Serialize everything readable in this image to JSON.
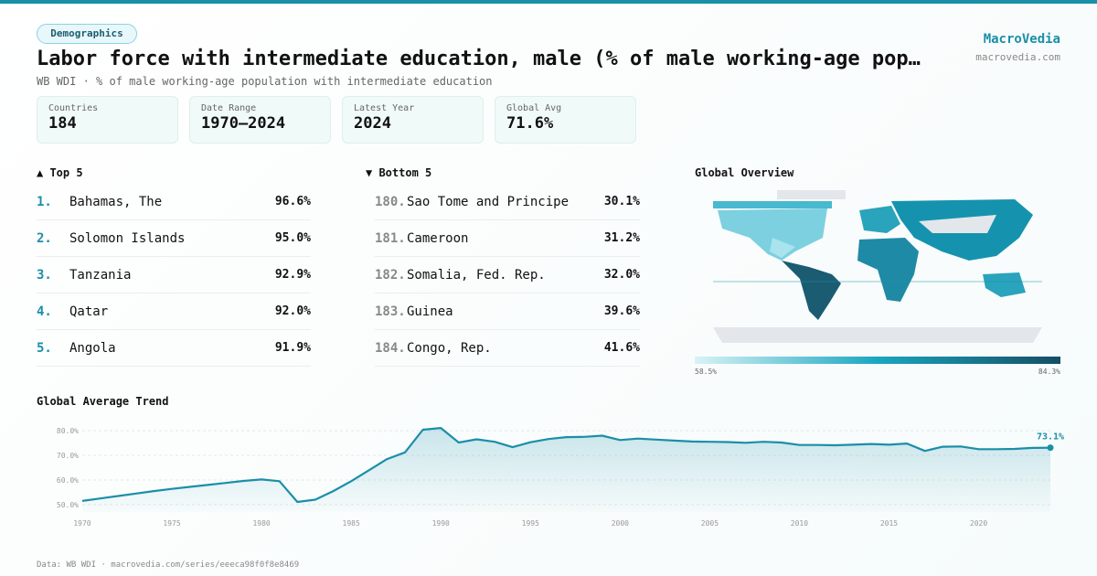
{
  "header": {
    "tag": "Demographics",
    "title": "Labor force with intermediate education, male (% of male working-age pop…",
    "subtitle": "WB WDI · % of male working-age population with intermediate education",
    "brand": "MacroVedia",
    "site": "macrovedia.com"
  },
  "stats": [
    {
      "label": "Countries",
      "value": "184"
    },
    {
      "label": "Date Range",
      "value": "1970–2024"
    },
    {
      "label": "Latest Year",
      "value": "2024"
    },
    {
      "label": "Global Avg",
      "value": "71.6%"
    }
  ],
  "top": {
    "title": "▲ Top 5",
    "rows": [
      {
        "rank": "1.",
        "name": "Bahamas, The",
        "value": "96.6%"
      },
      {
        "rank": "2.",
        "name": "Solomon Islands",
        "value": "95.0%"
      },
      {
        "rank": "3.",
        "name": "Tanzania",
        "value": "92.9%"
      },
      {
        "rank": "4.",
        "name": "Qatar",
        "value": "92.0%"
      },
      {
        "rank": "5.",
        "name": "Angola",
        "value": "91.9%"
      }
    ]
  },
  "bottom": {
    "title": "▼ Bottom 5",
    "rows": [
      {
        "rank": "180.",
        "name": "Sao Tome and Principe",
        "value": "30.1%"
      },
      {
        "rank": "181.",
        "name": "Cameroon",
        "value": "31.2%"
      },
      {
        "rank": "182.",
        "name": "Somalia, Fed. Rep.",
        "value": "32.0%"
      },
      {
        "rank": "183.",
        "name": "Guinea",
        "value": "39.6%"
      },
      {
        "rank": "184.",
        "name": "Congo, Rep.",
        "value": "41.6%"
      }
    ]
  },
  "map": {
    "title": "Global Overview",
    "min_label": "58.5%",
    "max_label": "84.3%"
  },
  "chart_data": {
    "type": "line",
    "title": "Global Average Trend",
    "x": [
      1970,
      1971,
      1972,
      1973,
      1974,
      1975,
      1976,
      1977,
      1978,
      1979,
      1980,
      1981,
      1982,
      1983,
      1984,
      1985,
      1986,
      1987,
      1988,
      1989,
      1990,
      1991,
      1992,
      1993,
      1994,
      1995,
      1996,
      1997,
      1998,
      1999,
      2000,
      2001,
      2002,
      2003,
      2004,
      2005,
      2006,
      2007,
      2008,
      2009,
      2010,
      2011,
      2012,
      2013,
      2014,
      2015,
      2016,
      2017,
      2018,
      2019,
      2020,
      2021,
      2022,
      2023,
      2024
    ],
    "series": [
      {
        "name": "Global average",
        "color": "#1a8fa8",
        "values": [
          51.5,
          52.5,
          53.5,
          54.5,
          55.5,
          56.4,
          57.2,
          58,
          58.8,
          59.6,
          60.2,
          59.5,
          51.1,
          52,
          55.5,
          59.5,
          64,
          68.5,
          71.2,
          80.4,
          81.1,
          75.2,
          76.5,
          75.5,
          73.3,
          75.3,
          76.6,
          77.4,
          77.5,
          78,
          76.2,
          76.8,
          76.4,
          76,
          75.6,
          75.5,
          75.4,
          75.1,
          75.5,
          75.2,
          74.2,
          74.2,
          74.1,
          74.3,
          74.6,
          74.3,
          74.8,
          71.8,
          73.5,
          73.6,
          72.5,
          72.5,
          72.6,
          73,
          73.1
        ],
        "value_labels": [
          null,
          null,
          null,
          null,
          null,
          null,
          null,
          null,
          null,
          null,
          null,
          null,
          null,
          null,
          null,
          null,
          null,
          null,
          null,
          null,
          null,
          null,
          null,
          null,
          null,
          null,
          null,
          null,
          null,
          null,
          null,
          null,
          null,
          null,
          null,
          null,
          null,
          null,
          null,
          null,
          null,
          null,
          null,
          null,
          null,
          null,
          null,
          null,
          null,
          null,
          null,
          null,
          null,
          null,
          "73.1%"
        ]
      }
    ],
    "xlim": [
      1970,
      2024
    ],
    "xticks": [
      1970,
      1975,
      1980,
      1985,
      1990,
      1995,
      2000,
      2005,
      2010,
      2015,
      2020
    ],
    "ylim": [
      47,
      83
    ],
    "yticks": [
      {
        "value": 50,
        "label": "50.0%"
      },
      {
        "value": 60,
        "label": "60.0%"
      },
      {
        "value": 70,
        "label": "70.0%"
      },
      {
        "value": 80,
        "label": "80.0%"
      }
    ],
    "grid": true
  },
  "footer": "Data: WB WDI · macrovedia.com/series/eeeca98f0f8e8469"
}
